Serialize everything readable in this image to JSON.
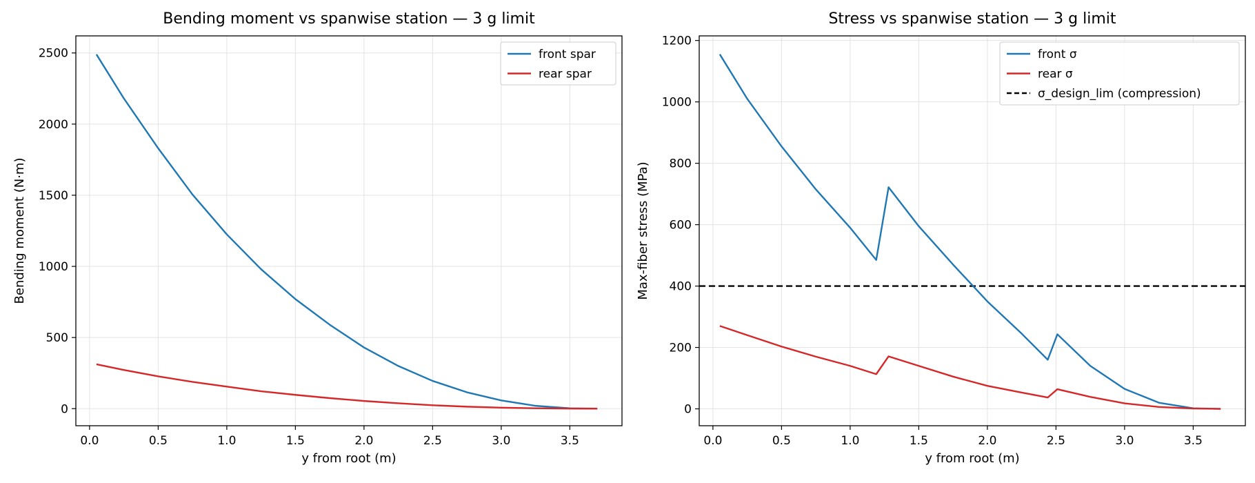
{
  "chart_data": [
    {
      "type": "line",
      "title": "Bending moment vs spanwise station — 3 g limit",
      "xlabel": "y from root (m)",
      "ylabel": "Bending moment (N·m)",
      "xlim": [
        -0.1,
        3.88
      ],
      "ylim": [
        -120,
        2620
      ],
      "xticks": [
        0.0,
        0.5,
        1.0,
        1.5,
        2.0,
        2.5,
        3.0,
        3.5
      ],
      "xtick_labels": [
        "0.0",
        "0.5",
        "1.0",
        "1.5",
        "2.0",
        "2.5",
        "3.0",
        "3.5"
      ],
      "yticks": [
        0,
        500,
        1000,
        1500,
        2000,
        2500
      ],
      "ytick_labels": [
        "0",
        "500",
        "1000",
        "1500",
        "2000",
        "2500"
      ],
      "grid": true,
      "legend": "top-right",
      "series": [
        {
          "name": "front spar",
          "color": "#1f77b4",
          "x": [
            0.05,
            0.25,
            0.5,
            0.75,
            1.0,
            1.25,
            1.5,
            1.75,
            2.0,
            2.25,
            2.5,
            2.75,
            3.0,
            3.25,
            3.5,
            3.7
          ],
          "y": [
            2490,
            2180,
            1830,
            1505,
            1225,
            980,
            770,
            590,
            430,
            300,
            195,
            115,
            58,
            20,
            3,
            0
          ]
        },
        {
          "name": "rear spar",
          "color": "#d62728",
          "x": [
            0.05,
            0.25,
            0.5,
            0.75,
            1.0,
            1.25,
            1.5,
            1.75,
            2.0,
            2.25,
            2.5,
            2.75,
            3.0,
            3.25,
            3.5,
            3.7
          ],
          "y": [
            312,
            272,
            227,
            188,
            155,
            122,
            97,
            74,
            54,
            38,
            24,
            14,
            7,
            3,
            0.5,
            0
          ]
        }
      ]
    },
    {
      "type": "line",
      "title": "Stress vs spanwise station — 3 g limit",
      "xlabel": "y from root (m)",
      "ylabel": "Max-fiber stress (MPa)",
      "xlim": [
        -0.1,
        3.88
      ],
      "ylim": [
        -55,
        1215
      ],
      "xticks": [
        0.0,
        0.5,
        1.0,
        1.5,
        2.0,
        2.5,
        3.0,
        3.5
      ],
      "xtick_labels": [
        "0.0",
        "0.5",
        "1.0",
        "1.5",
        "2.0",
        "2.5",
        "3.0",
        "3.5"
      ],
      "yticks": [
        0,
        200,
        400,
        600,
        800,
        1000,
        1200
      ],
      "ytick_labels": [
        "0",
        "200",
        "400",
        "600",
        "800",
        "1000",
        "1200"
      ],
      "grid": true,
      "legend": "top-right",
      "series": [
        {
          "name": "front σ",
          "color": "#1f77b4",
          "x": [
            0.05,
            0.25,
            0.5,
            0.75,
            1.0,
            1.19,
            1.28,
            1.5,
            1.75,
            2.0,
            2.25,
            2.44,
            2.51,
            2.75,
            3.0,
            3.25,
            3.5,
            3.7
          ],
          "y": [
            1155,
            1010,
            855,
            715,
            590,
            485,
            722,
            595,
            470,
            350,
            245,
            160,
            243,
            140,
            65,
            20,
            2,
            0
          ]
        },
        {
          "name": "rear σ",
          "color": "#d62728",
          "x": [
            0.05,
            0.25,
            0.5,
            0.75,
            1.0,
            1.19,
            1.28,
            1.5,
            1.75,
            2.0,
            2.25,
            2.44,
            2.51,
            2.75,
            3.0,
            3.25,
            3.5,
            3.7
          ],
          "y": [
            270,
            240,
            203,
            170,
            140,
            113,
            171,
            140,
            105,
            75,
            53,
            37,
            64,
            39,
            18,
            6,
            1,
            0
          ]
        }
      ],
      "reference_line": {
        "name": "σ_design_lim (compression)",
        "y": 400,
        "color": "#000000",
        "style": "dashed"
      }
    }
  ]
}
